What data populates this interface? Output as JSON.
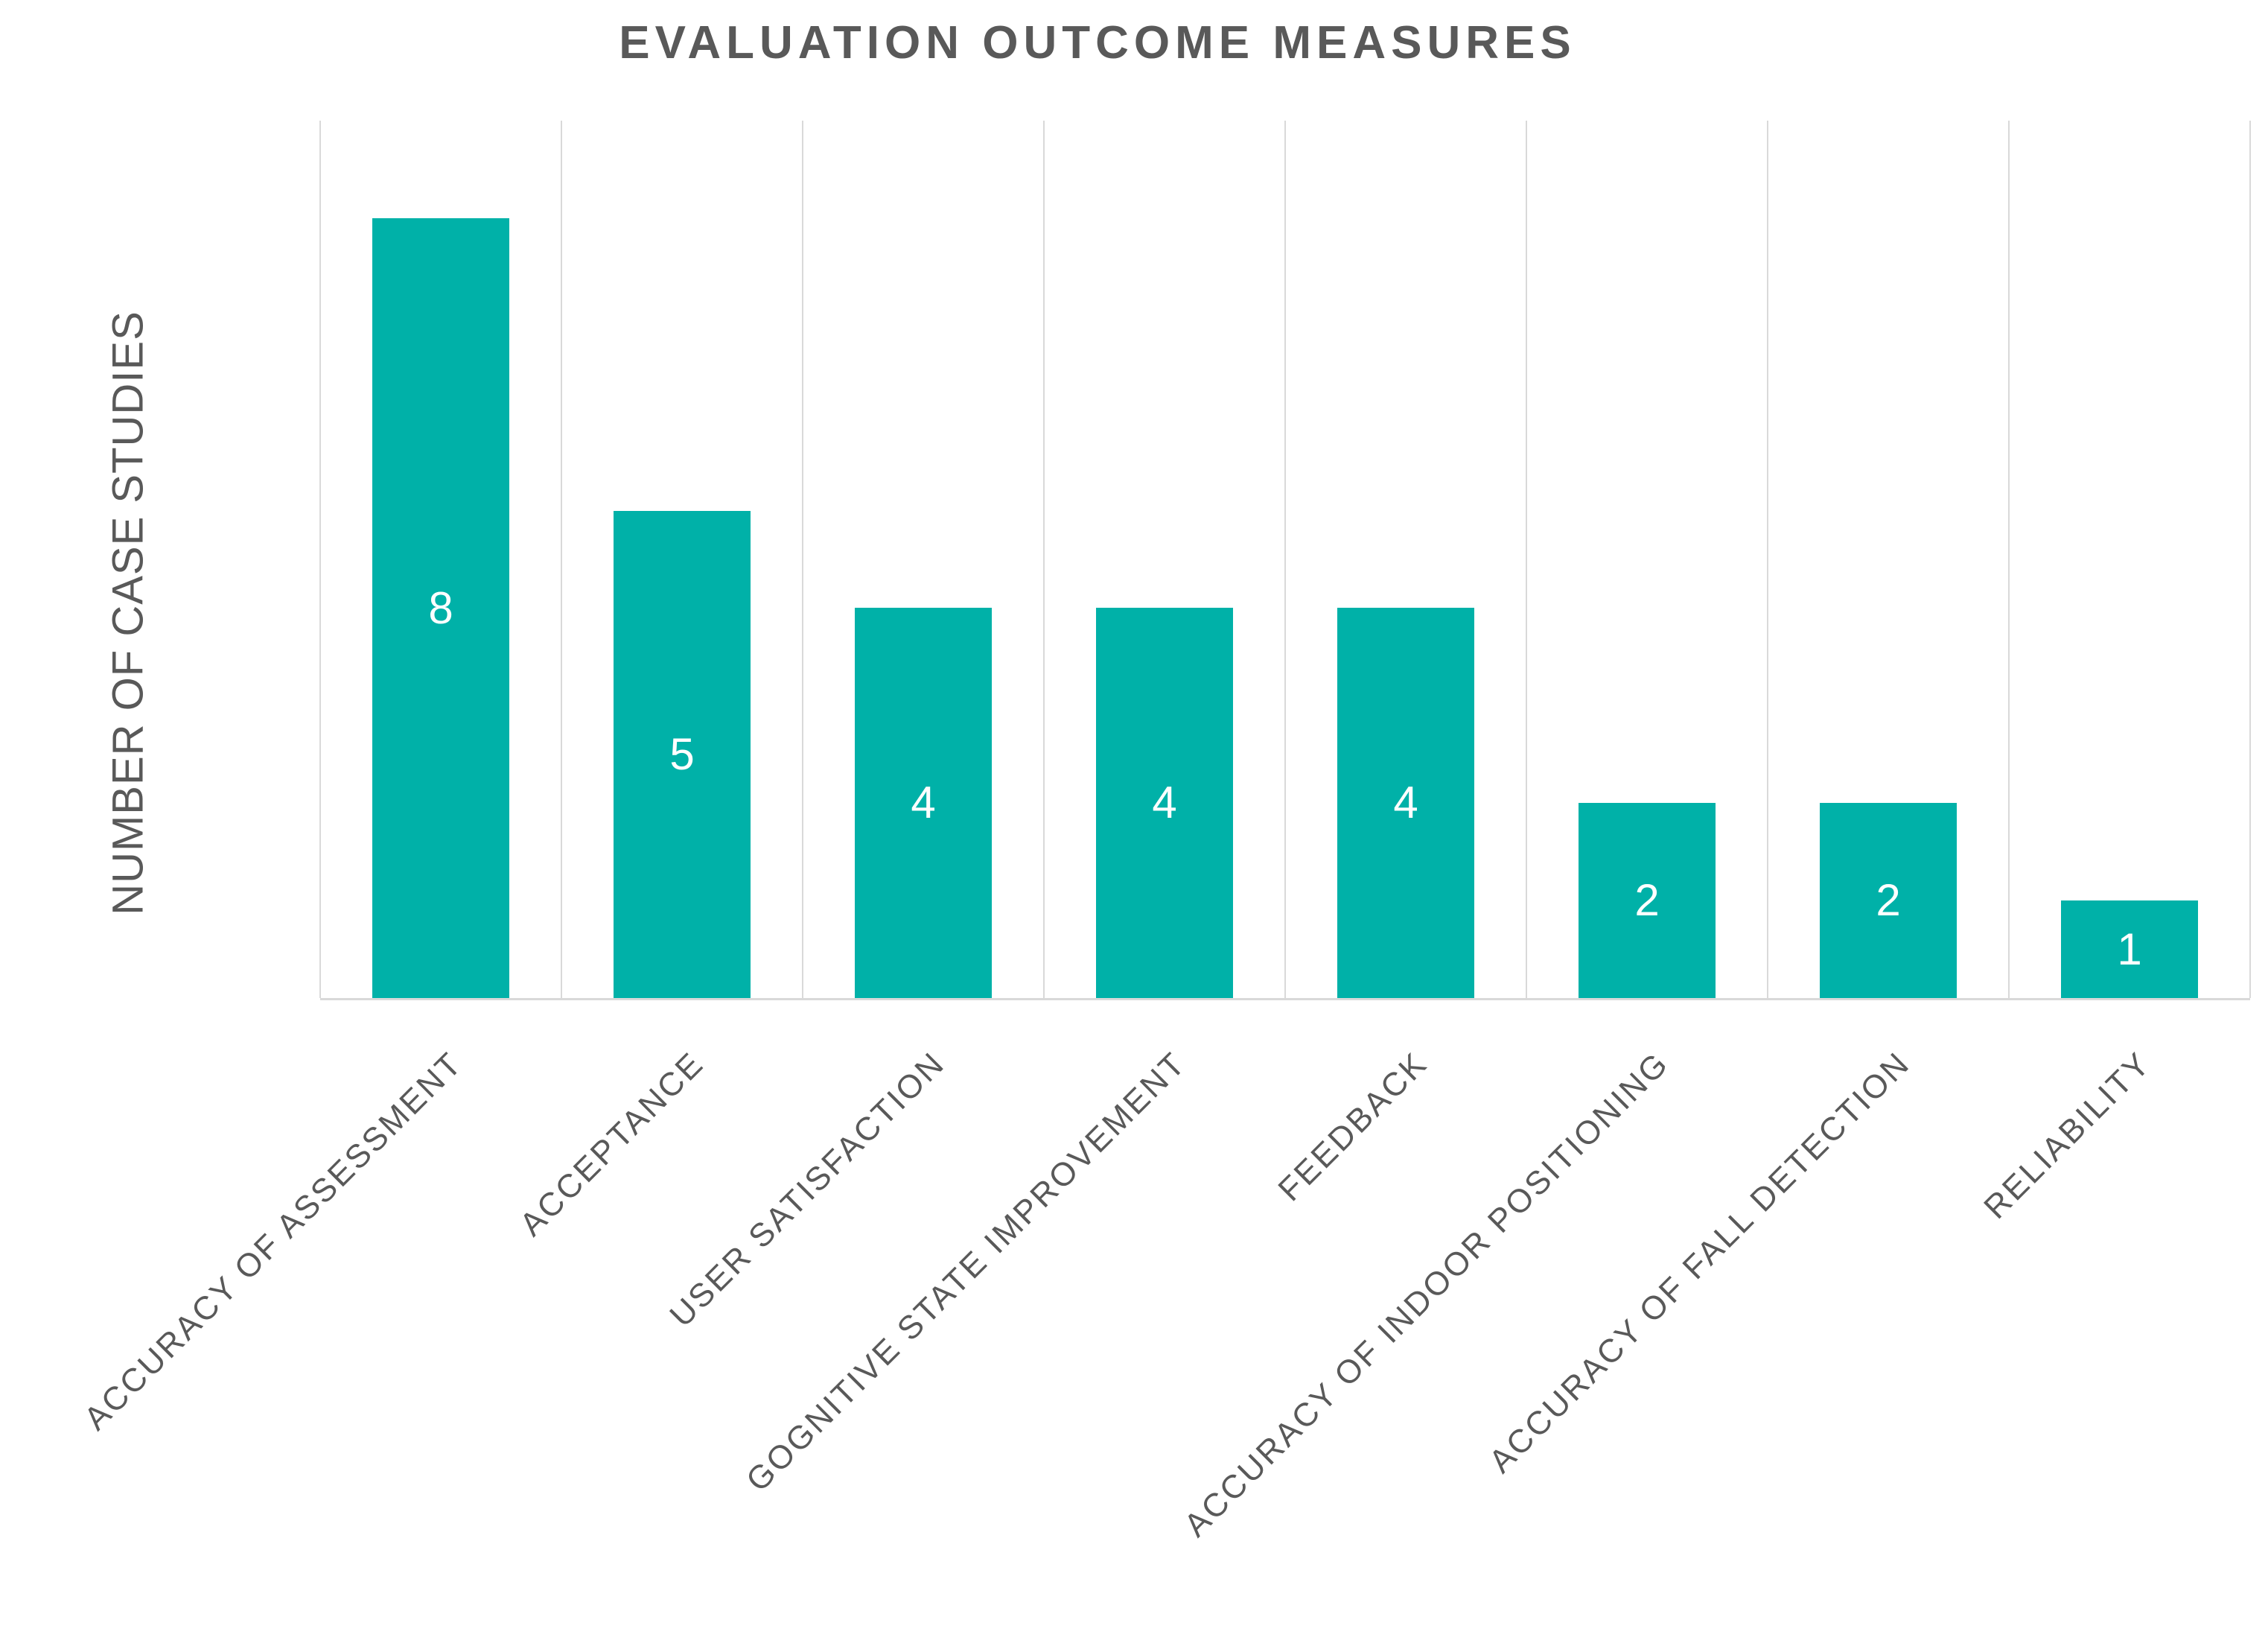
{
  "chart_data": {
    "type": "bar",
    "title": "EVALUATION OUTCOME MEASURES",
    "xlabel": "",
    "ylabel": "NUMBER OF CASE STUDIES",
    "categories": [
      "ACCURACY OF ASSESSMENT",
      "ACCEPTANCE",
      "USER SATISFACTION",
      "GOGNITIVE STATE IMPROVEMENT",
      "FEEDBACK",
      "ACCURACY OF INDOOR POSITIONING",
      "ACCURACY OF FALL DETECTION",
      "RELIABILITY"
    ],
    "values": [
      8,
      5,
      4,
      4,
      4,
      2,
      2,
      1
    ],
    "ylim": [
      0,
      9
    ],
    "grid": "vertical category separators only, no horizontal gridlines, no y-axis tick labels",
    "legend_position": "none",
    "data_labels": "values shown in white, centered inside each bar",
    "colors": {
      "bar_fill": "#00b1a8",
      "value_label": "#ffffff",
      "title_text": "#595959",
      "axis_text": "#595959",
      "gridline": "#d9d9d9",
      "axis_line": "#d9d9d9",
      "background": "#ffffff"
    }
  }
}
